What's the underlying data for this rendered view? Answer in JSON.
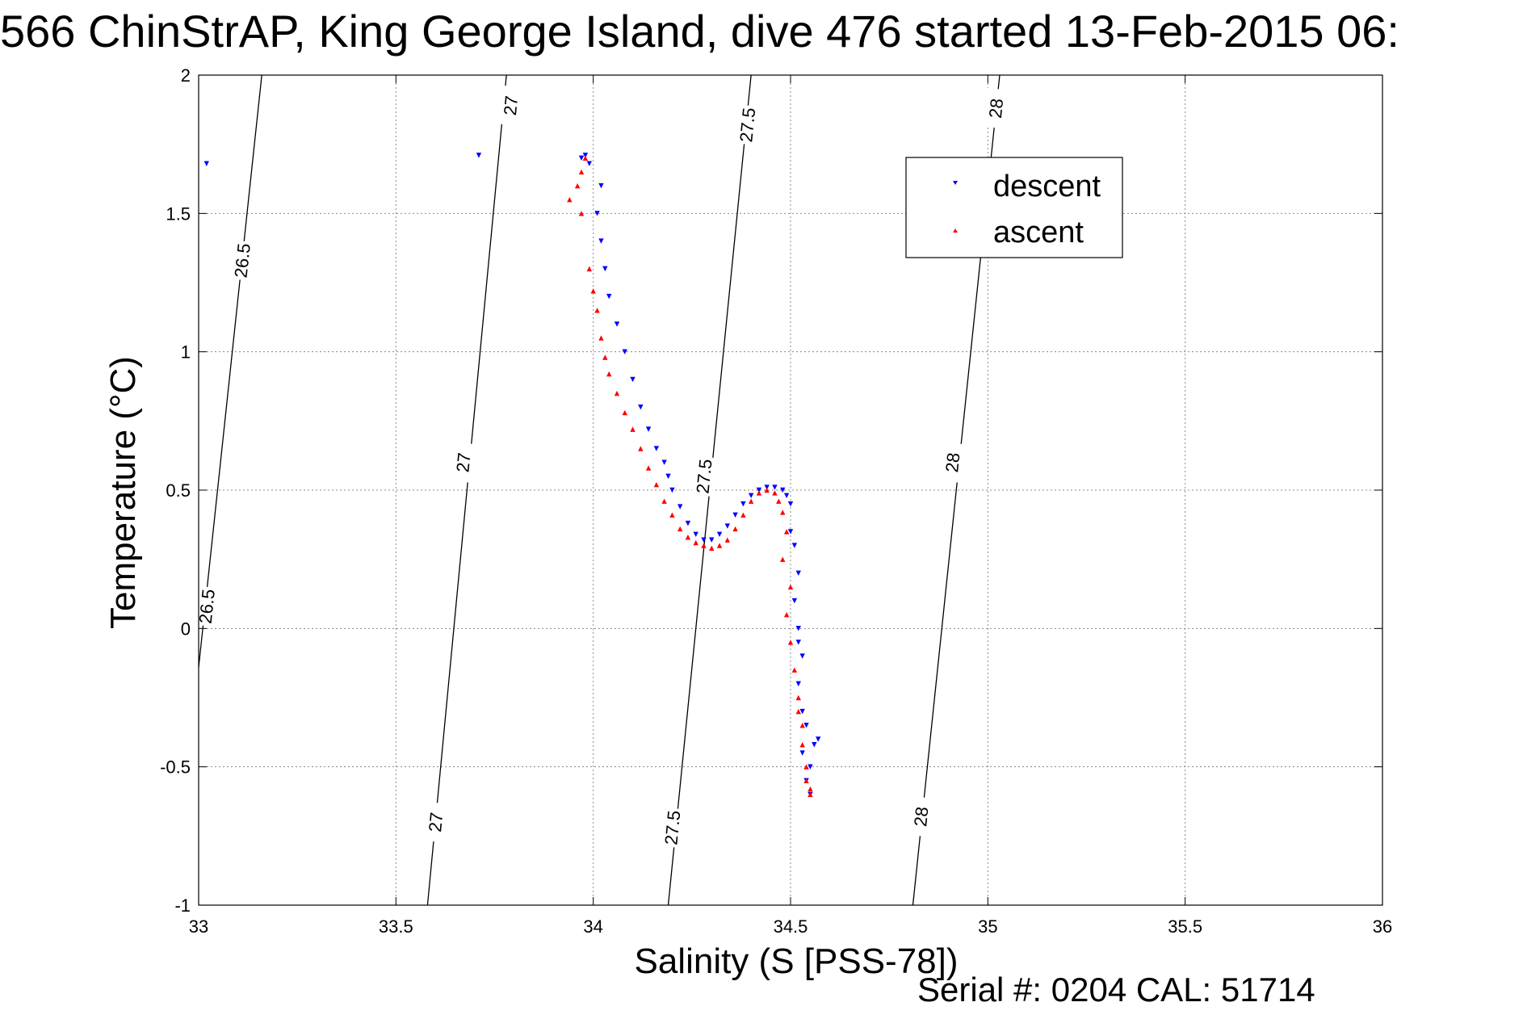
{
  "header": {
    "title": "566 ChinStrAP, King George Island, dive 476 started 13-Feb-2015 06:",
    "footer": "Serial #: 0204  CAL: 51714"
  },
  "chart_data": {
    "type": "scatter",
    "title": "566 ChinStrAP, King George Island, dive 476 started 13-Feb-2015 06:",
    "xlabel": "Salinity (S [PSS-78])",
    "ylabel": "Temperature (°C)",
    "xlim": [
      33,
      36
    ],
    "ylim": [
      -1,
      2
    ],
    "x_ticks": [
      "33",
      "33.5",
      "34",
      "34.5",
      "35",
      "35.5",
      "36"
    ],
    "y_ticks": [
      "-1",
      "-0.5",
      "0",
      "0.5",
      "1",
      "1.5",
      "2"
    ],
    "grid": true,
    "legend_position": "top-right",
    "colors": {
      "descent": "#0000ff",
      "ascent": "#ff0000",
      "contour": "#000000"
    },
    "isopycnals": [
      {
        "label": "26.5",
        "points": [
          [
            33.0,
            -0.14
          ],
          [
            33.16,
            2.0
          ]
        ],
        "label_positions": [
          [
            33.11,
            1.33
          ],
          [
            33.02,
            0.08
          ]
        ]
      },
      {
        "label": "27",
        "points": [
          [
            33.58,
            -1.0
          ],
          [
            33.78,
            2.0
          ]
        ],
        "label_positions": [
          [
            33.79,
            1.89
          ],
          [
            33.67,
            0.6
          ],
          [
            33.6,
            -0.7
          ]
        ]
      },
      {
        "label": "27.5",
        "points": [
          [
            34.19,
            -1.0
          ],
          [
            34.4,
            2.0
          ]
        ],
        "label_positions": [
          [
            34.39,
            1.82
          ],
          [
            34.28,
            0.55
          ],
          [
            34.2,
            -0.72
          ]
        ]
      },
      {
        "label": "28",
        "points": [
          [
            34.81,
            -1.0
          ],
          [
            35.03,
            2.0
          ]
        ],
        "label_positions": [
          [
            35.02,
            1.88
          ],
          [
            34.91,
            0.6
          ],
          [
            34.83,
            -0.68
          ]
        ]
      }
    ],
    "series": [
      {
        "name": "descent",
        "marker": "triangle-down",
        "x": [
          33.02,
          33.71,
          33.97,
          33.98,
          33.99,
          34.02,
          34.01,
          34.02,
          34.03,
          34.04,
          34.06,
          34.08,
          34.1,
          34.12,
          34.14,
          34.16,
          34.18,
          34.19,
          34.2,
          34.22,
          34.24,
          34.26,
          34.28,
          34.3,
          34.32,
          34.34,
          34.36,
          34.38,
          34.4,
          34.42,
          34.44,
          34.46,
          34.48,
          34.49,
          34.5,
          34.5,
          34.51,
          34.52,
          34.51,
          34.52,
          34.52,
          34.53,
          34.52,
          34.53,
          34.54,
          34.53,
          34.55,
          34.54,
          34.56,
          34.57,
          34.55
        ],
        "y": [
          1.68,
          1.71,
          1.7,
          1.71,
          1.68,
          1.6,
          1.5,
          1.4,
          1.3,
          1.2,
          1.1,
          1.0,
          0.9,
          0.8,
          0.72,
          0.65,
          0.6,
          0.55,
          0.5,
          0.44,
          0.38,
          0.34,
          0.32,
          0.32,
          0.34,
          0.37,
          0.41,
          0.45,
          0.48,
          0.5,
          0.51,
          0.51,
          0.5,
          0.48,
          0.45,
          0.35,
          0.3,
          0.2,
          0.1,
          0.0,
          -0.05,
          -0.1,
          -0.2,
          -0.3,
          -0.35,
          -0.45,
          -0.5,
          -0.55,
          -0.42,
          -0.4,
          -0.6
        ]
      },
      {
        "name": "ascent",
        "marker": "triangle-up",
        "x": [
          33.94,
          33.96,
          33.97,
          33.98,
          33.97,
          33.99,
          34.0,
          34.01,
          34.02,
          34.03,
          34.04,
          34.06,
          34.08,
          34.1,
          34.12,
          34.14,
          34.16,
          34.18,
          34.2,
          34.22,
          34.24,
          34.26,
          34.28,
          34.3,
          34.32,
          34.34,
          34.36,
          34.38,
          34.4,
          34.42,
          34.44,
          34.46,
          34.47,
          34.48,
          34.49,
          34.48,
          34.5,
          34.49,
          34.5,
          34.51,
          34.52,
          34.52,
          34.53,
          34.53,
          34.54,
          34.54,
          34.55,
          34.55
        ],
        "y": [
          1.55,
          1.6,
          1.65,
          1.7,
          1.5,
          1.3,
          1.22,
          1.15,
          1.05,
          0.98,
          0.92,
          0.85,
          0.78,
          0.72,
          0.65,
          0.58,
          0.52,
          0.46,
          0.41,
          0.36,
          0.33,
          0.31,
          0.3,
          0.29,
          0.3,
          0.32,
          0.36,
          0.41,
          0.46,
          0.49,
          0.5,
          0.49,
          0.46,
          0.42,
          0.35,
          0.25,
          0.15,
          0.05,
          -0.05,
          -0.15,
          -0.25,
          -0.3,
          -0.35,
          -0.42,
          -0.5,
          -0.55,
          -0.58,
          -0.6
        ]
      }
    ]
  }
}
